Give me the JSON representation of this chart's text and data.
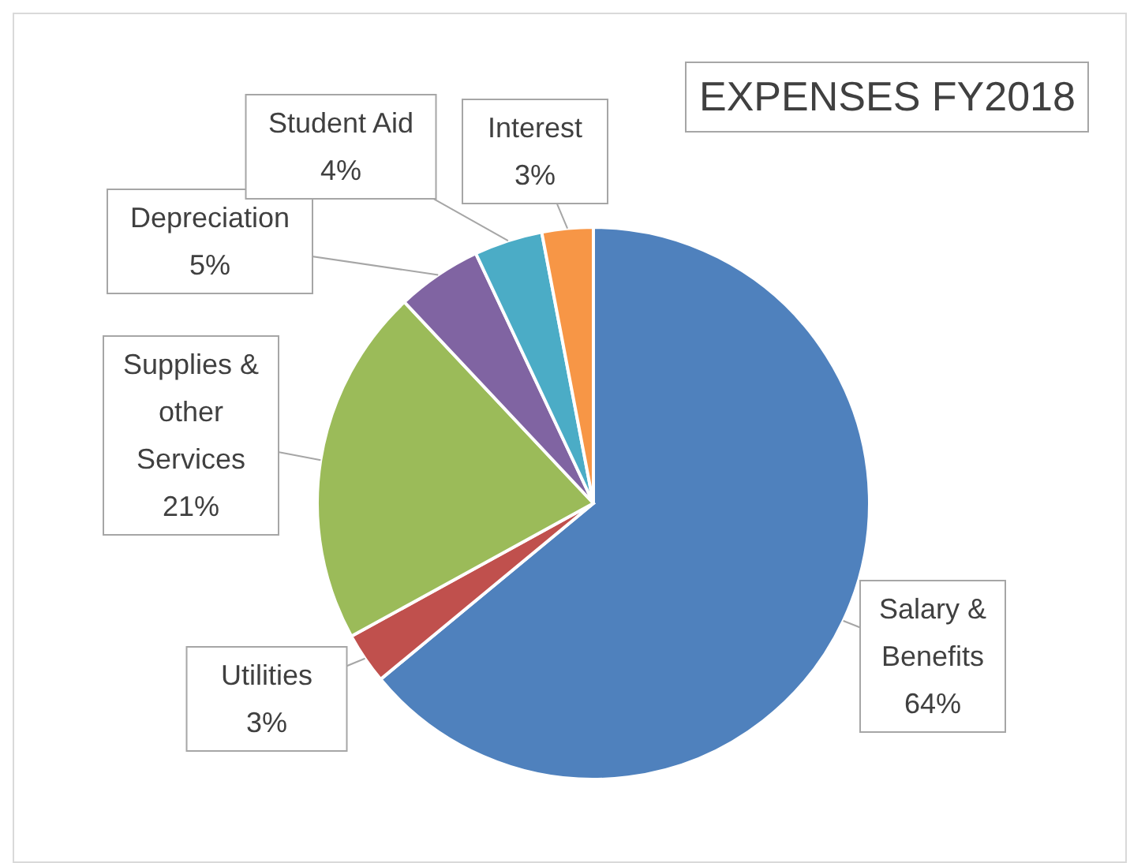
{
  "chart_data": {
    "type": "pie",
    "title": "EXPENSES FY2018",
    "categories": [
      "Salary & Benefits",
      "Utilities",
      "Supplies & other Services",
      "Depreciation",
      "Student Aid",
      "Interest"
    ],
    "values": [
      64,
      3,
      21,
      5,
      4,
      3
    ],
    "colors": [
      "#4f81bd",
      "#c0504d",
      "#9bbb59",
      "#8064a2",
      "#4bacc6",
      "#f79646"
    ],
    "value_labels": [
      "64%",
      "3%",
      "21%",
      "5%",
      "4%",
      "3%"
    ]
  }
}
